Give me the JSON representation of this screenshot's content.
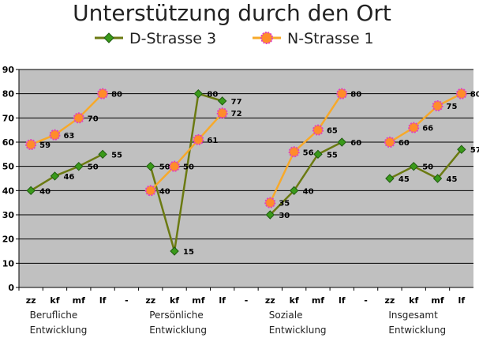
{
  "chart_data": {
    "type": "line",
    "title": "Unterstützung durch den Ort",
    "xlabel": "",
    "ylabel": "",
    "ylim": [
      0,
      90
    ],
    "yticks": [
      0,
      10,
      20,
      30,
      40,
      50,
      60,
      70,
      80,
      90
    ],
    "grid": true,
    "legend": "top",
    "categories": [
      "zz",
      "kf",
      "mf",
      "lf",
      "-",
      "zz",
      "kf",
      "mf",
      "lf",
      "-",
      "zz",
      "kf",
      "mf",
      "lf",
      "-",
      "zz",
      "kf",
      "mf",
      "lf"
    ],
    "groups": [
      {
        "label_line1": "Berufliche",
        "label_line2": "Entwicklung"
      },
      {
        "label_line1": "Persönliche",
        "label_line2": "Entwicklung"
      },
      {
        "label_line1": "Soziale",
        "label_line2": "Entwicklung"
      },
      {
        "label_line1": "Insgesamt",
        "label_line2": "Entwicklung"
      }
    ],
    "series": [
      {
        "name": "D-Strasse 3",
        "color": "#6b7a12",
        "marker_color": "#3a9a1a",
        "marker": "diamond",
        "values": [
          40,
          46,
          50,
          55,
          null,
          50,
          15,
          80,
          77,
          null,
          30,
          40,
          55,
          60,
          null,
          45,
          50,
          45,
          57
        ]
      },
      {
        "name": "N-Strasse 1",
        "color": "#f7a92a",
        "marker_color": "#ff8c2a",
        "marker_edge": "#e040c0",
        "marker": "circle",
        "values": [
          59,
          63,
          70,
          80,
          null,
          40,
          50,
          61,
          72,
          null,
          35,
          56,
          65,
          80,
          null,
          60,
          66,
          75,
          80
        ]
      }
    ],
    "colors": {
      "plot_bg": "#c0c0c0",
      "grid": "#000000"
    }
  }
}
